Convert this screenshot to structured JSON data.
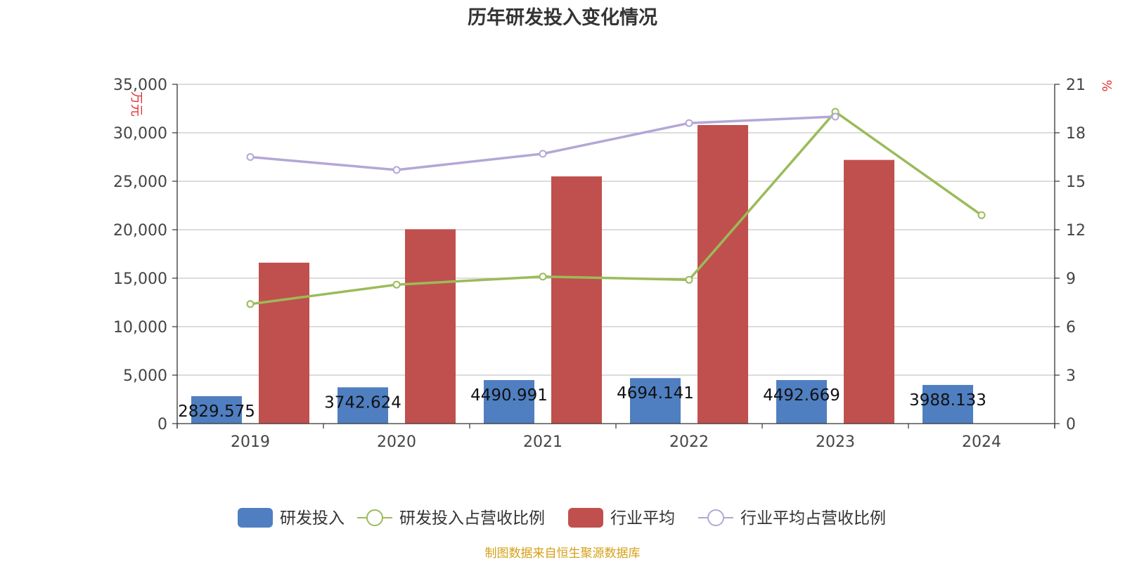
{
  "chart_data": {
    "type": "bar",
    "title": "历年研发投入变化情况",
    "categories": [
      "2019",
      "2020",
      "2021",
      "2022",
      "2023",
      "2024"
    ],
    "y_left": {
      "unit_label": "万元",
      "ylim": [
        0,
        35000
      ],
      "ticks": [
        "0",
        "5,000",
        "10,000",
        "15,000",
        "20,000",
        "25,000",
        "30,000",
        "35,000"
      ]
    },
    "y_right": {
      "unit_label": "%",
      "ylim": [
        0,
        21
      ],
      "ticks": [
        "0",
        "3",
        "6",
        "9",
        "12",
        "15",
        "18",
        "21"
      ]
    },
    "series": [
      {
        "name": "研发投入",
        "kind": "bar",
        "axis": "left",
        "color": "#4f7fc1",
        "values": [
          2829.575,
          3742.624,
          4490.991,
          4694.141,
          4492.669,
          3988.133
        ],
        "labels": [
          "2829.575",
          "3742.624",
          "4490.991",
          "4694.141",
          "4492.669",
          "3988.133"
        ]
      },
      {
        "name": "行业平均",
        "kind": "bar",
        "axis": "left",
        "color": "#c0504d",
        "values": [
          16600,
          20050,
          25500,
          30800,
          27200,
          null
        ]
      },
      {
        "name": "研发投入占营收比例",
        "kind": "line",
        "axis": "right",
        "color": "#9bbb59",
        "values": [
          7.4,
          8.6,
          9.1,
          8.9,
          19.3,
          12.9
        ]
      },
      {
        "name": "行业平均占营收比例",
        "kind": "line",
        "axis": "right",
        "color": "#b4a7d6",
        "values": [
          16.5,
          15.7,
          16.7,
          18.6,
          19.0,
          null
        ]
      }
    ],
    "legend_position": "bottom-center",
    "grid": true
  },
  "source_text": "制图数据来自恒生聚源数据库",
  "colors": {
    "title": "#333333",
    "axis_text": "#444444",
    "unit_text": "#e03030",
    "source": "#d4a017",
    "grid": "#c8c8c8"
  }
}
